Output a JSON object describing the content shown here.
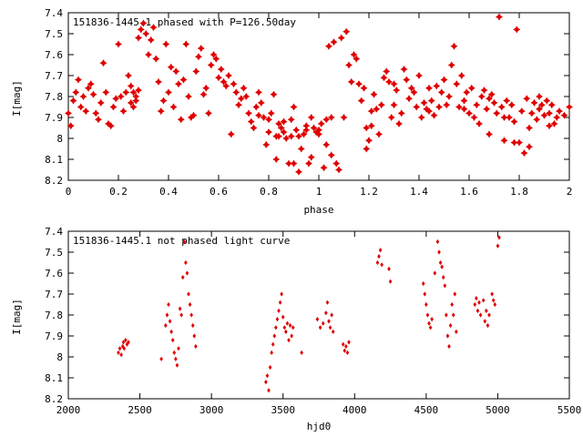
{
  "chart_data": [
    {
      "type": "scatter",
      "title": "151836-1445.1 phased with P=126.50day",
      "xlabel": "phase",
      "ylabel": "I[mag]",
      "xlim": [
        0,
        2
      ],
      "ylim": [
        8.2,
        7.4
      ],
      "y_inverted": true,
      "x_ticks": [
        "0",
        "0.2",
        "0.4",
        "0.6",
        "0.8",
        "1",
        "1.2",
        "1.4",
        "1.6",
        "1.8",
        "2"
      ],
      "y_ticks": [
        "7.4",
        "7.5",
        "7.6",
        "7.7",
        "7.8",
        "7.9",
        "8",
        "8.1",
        "8.2"
      ],
      "marker": "star",
      "color": "#e00000",
      "grid": false,
      "points": [
        [
          0.0,
          7.88
        ],
        [
          0.01,
          7.94
        ],
        [
          0.02,
          7.82
        ],
        [
          0.03,
          7.78
        ],
        [
          0.04,
          7.72
        ],
        [
          0.05,
          7.85
        ],
        [
          0.06,
          7.8
        ],
        [
          0.07,
          7.87
        ],
        [
          0.08,
          7.76
        ],
        [
          0.09,
          7.74
        ],
        [
          0.1,
          7.79
        ],
        [
          0.11,
          7.88
        ],
        [
          0.12,
          7.91
        ],
        [
          0.13,
          7.83
        ],
        [
          0.14,
          7.64
        ],
        [
          0.15,
          7.78
        ],
        [
          0.16,
          7.93
        ],
        [
          0.17,
          7.94
        ],
        [
          0.18,
          7.85
        ],
        [
          0.19,
          7.81
        ],
        [
          0.2,
          7.55
        ],
        [
          0.21,
          7.8
        ],
        [
          0.22,
          7.87
        ],
        [
          0.23,
          7.78
        ],
        [
          0.24,
          7.7
        ],
        [
          0.25,
          7.75
        ],
        [
          0.25,
          7.83
        ],
        [
          0.26,
          7.78
        ],
        [
          0.26,
          7.85
        ],
        [
          0.27,
          7.8
        ],
        [
          0.27,
          7.82
        ],
        [
          0.28,
          7.77
        ],
        [
          0.28,
          7.52
        ],
        [
          0.29,
          7.48
        ],
        [
          0.3,
          7.45
        ],
        [
          0.31,
          7.5
        ],
        [
          0.32,
          7.6
        ],
        [
          0.33,
          7.53
        ],
        [
          0.34,
          7.47
        ],
        [
          0.35,
          7.62
        ],
        [
          0.36,
          7.73
        ],
        [
          0.37,
          7.87
        ],
        [
          0.38,
          7.82
        ],
        [
          0.39,
          7.55
        ],
        [
          0.4,
          7.78
        ],
        [
          0.41,
          7.66
        ],
        [
          0.42,
          7.85
        ],
        [
          0.43,
          7.68
        ],
        [
          0.44,
          7.74
        ],
        [
          0.45,
          7.91
        ],
        [
          0.46,
          7.72
        ],
        [
          0.47,
          7.55
        ],
        [
          0.48,
          7.8
        ],
        [
          0.49,
          7.9
        ],
        [
          0.5,
          7.89
        ],
        [
          0.51,
          7.68
        ],
        [
          0.52,
          7.61
        ],
        [
          0.53,
          7.57
        ],
        [
          0.54,
          7.79
        ],
        [
          0.55,
          7.76
        ],
        [
          0.56,
          7.88
        ],
        [
          0.57,
          7.65
        ],
        [
          0.58,
          7.6
        ],
        [
          0.59,
          7.62
        ],
        [
          0.6,
          7.71
        ],
        [
          0.61,
          7.67
        ],
        [
          0.62,
          7.73
        ],
        [
          0.63,
          7.75
        ],
        [
          0.64,
          7.7
        ],
        [
          0.65,
          7.98
        ],
        [
          0.66,
          7.74
        ],
        [
          0.67,
          7.78
        ],
        [
          0.68,
          7.84
        ],
        [
          0.69,
          7.81
        ],
        [
          0.7,
          7.76
        ],
        [
          0.71,
          7.8
        ],
        [
          0.72,
          7.88
        ],
        [
          0.73,
          7.92
        ],
        [
          0.74,
          7.95
        ],
        [
          0.75,
          7.85
        ],
        [
          0.76,
          7.78
        ],
        [
          0.77,
          7.83
        ],
        [
          0.78,
          7.9
        ],
        [
          0.79,
          8.03
        ],
        [
          0.8,
          7.97
        ],
        [
          0.81,
          7.88
        ],
        [
          0.82,
          7.79
        ],
        [
          0.83,
          8.1
        ],
        [
          0.84,
          7.93
        ],
        [
          0.85,
          7.95
        ],
        [
          0.86,
          7.97
        ],
        [
          0.87,
          8.0
        ],
        [
          0.88,
          8.12
        ],
        [
          0.89,
          7.99
        ],
        [
          0.9,
          7.85
        ],
        [
          0.91,
          7.96
        ],
        [
          0.92,
          8.16
        ],
        [
          0.93,
          8.05
        ],
        [
          0.94,
          7.98
        ],
        [
          0.95,
          7.94
        ],
        [
          0.96,
          8.12
        ],
        [
          0.97,
          7.9
        ],
        [
          0.98,
          7.95
        ],
        [
          0.99,
          7.97
        ],
        [
          1.0,
          7.98
        ],
        [
          1.01,
          7.93
        ],
        [
          1.02,
          8.14
        ],
        [
          1.03,
          7.91
        ],
        [
          1.04,
          7.56
        ],
        [
          1.05,
          7.9
        ],
        [
          1.06,
          7.54
        ],
        [
          1.07,
          8.12
        ],
        [
          1.08,
          8.15
        ],
        [
          1.09,
          7.52
        ],
        [
          1.1,
          7.9
        ],
        [
          1.11,
          7.49
        ],
        [
          1.12,
          7.65
        ],
        [
          1.13,
          7.73
        ],
        [
          1.14,
          7.6
        ],
        [
          1.15,
          7.62
        ],
        [
          1.16,
          7.74
        ],
        [
          1.17,
          7.82
        ],
        [
          1.18,
          7.76
        ],
        [
          1.19,
          7.95
        ],
        [
          1.2,
          8.01
        ],
        [
          1.21,
          7.87
        ],
        [
          1.22,
          7.79
        ],
        [
          1.23,
          7.86
        ],
        [
          1.24,
          7.98
        ],
        [
          1.25,
          7.84
        ],
        [
          1.26,
          7.71
        ],
        [
          1.27,
          7.68
        ],
        [
          1.28,
          7.73
        ],
        [
          1.29,
          7.9
        ],
        [
          1.3,
          7.84
        ],
        [
          1.31,
          7.77
        ],
        [
          1.32,
          7.93
        ],
        [
          1.33,
          7.88
        ],
        [
          1.34,
          7.67
        ],
        [
          1.35,
          7.72
        ],
        [
          1.36,
          7.81
        ],
        [
          1.37,
          7.76
        ],
        [
          1.38,
          7.78
        ],
        [
          1.39,
          7.85
        ],
        [
          1.4,
          7.7
        ],
        [
          1.41,
          7.9
        ],
        [
          1.42,
          7.83
        ],
        [
          1.43,
          7.86
        ],
        [
          1.44,
          7.87
        ],
        [
          1.45,
          7.82
        ],
        [
          1.46,
          7.89
        ],
        [
          1.47,
          7.75
        ],
        [
          1.48,
          7.85
        ],
        [
          1.49,
          7.78
        ],
        [
          1.5,
          7.72
        ],
        [
          1.51,
          7.84
        ],
        [
          1.52,
          7.8
        ],
        [
          1.53,
          7.65
        ],
        [
          1.54,
          7.56
        ],
        [
          1.55,
          7.74
        ],
        [
          1.56,
          7.85
        ],
        [
          1.57,
          7.7
        ],
        [
          1.58,
          7.82
        ],
        [
          1.59,
          7.78
        ],
        [
          1.6,
          7.88
        ],
        [
          1.61,
          7.76
        ],
        [
          1.62,
          7.9
        ],
        [
          1.63,
          7.84
        ],
        [
          1.64,
          7.93
        ],
        [
          1.65,
          7.8
        ],
        [
          1.66,
          7.77
        ],
        [
          1.67,
          7.86
        ],
        [
          1.68,
          7.81
        ],
        [
          1.69,
          7.79
        ],
        [
          1.7,
          7.83
        ],
        [
          1.71,
          7.88
        ],
        [
          1.72,
          7.42
        ],
        [
          1.73,
          7.85
        ],
        [
          1.74,
          8.01
        ],
        [
          1.75,
          7.82
        ],
        [
          1.76,
          7.9
        ],
        [
          1.77,
          7.84
        ],
        [
          1.78,
          7.92
        ],
        [
          1.79,
          7.48
        ],
        [
          1.8,
          8.02
        ],
        [
          1.81,
          7.87
        ],
        [
          1.82,
          8.07
        ],
        [
          1.83,
          7.81
        ],
        [
          1.84,
          7.95
        ],
        [
          1.85,
          7.88
        ],
        [
          1.86,
          7.83
        ],
        [
          1.87,
          7.91
        ],
        [
          1.88,
          7.86
        ],
        [
          1.89,
          7.84
        ],
        [
          1.9,
          7.89
        ],
        [
          1.91,
          7.82
        ],
        [
          1.92,
          7.88
        ],
        [
          1.93,
          7.84
        ],
        [
          1.94,
          7.93
        ],
        [
          1.95,
          7.9
        ],
        [
          1.96,
          7.87
        ],
        [
          1.98,
          7.89
        ],
        [
          2.0,
          7.85
        ],
        [
          0.83,
          7.99
        ],
        [
          0.86,
          7.92
        ],
        [
          0.89,
          7.91
        ],
        [
          0.95,
          7.96
        ],
        [
          1.0,
          7.96
        ],
        [
          1.03,
          8.03
        ],
        [
          1.05,
          8.08
        ],
        [
          0.9,
          8.12
        ],
        [
          0.92,
          7.99
        ],
        [
          0.97,
          8.09
        ],
        [
          0.8,
          7.91
        ],
        [
          0.76,
          7.89
        ],
        [
          0.84,
          7.99
        ],
        [
          1.19,
          8.05
        ],
        [
          1.21,
          7.94
        ],
        [
          1.3,
          7.74
        ],
        [
          1.44,
          7.76
        ],
        [
          1.58,
          7.86
        ],
        [
          1.68,
          7.98
        ],
        [
          1.74,
          7.9
        ],
        [
          1.78,
          8.02
        ],
        [
          1.84,
          8.04
        ],
        [
          1.88,
          7.8
        ],
        [
          1.92,
          7.94
        ]
      ]
    },
    {
      "type": "scatter",
      "title": "151836-1445.1 not phased light curve",
      "xlabel": "hjd0",
      "ylabel": "I[mag]",
      "xlim": [
        2000,
        5500
      ],
      "ylim": [
        8.2,
        7.4
      ],
      "y_inverted": true,
      "x_ticks": [
        "2000",
        "2500",
        "3000",
        "3500",
        "4000",
        "4500",
        "5000",
        "5500"
      ],
      "y_ticks": [
        "7.4",
        "7.5",
        "7.6",
        "7.7",
        "7.8",
        "7.9",
        "8",
        "8.1",
        "8.2"
      ],
      "marker": "diamond",
      "color": "#e00000",
      "grid": false,
      "points": [
        [
          2350,
          7.98
        ],
        [
          2360,
          7.96
        ],
        [
          2370,
          7.99
        ],
        [
          2380,
          7.95
        ],
        [
          2385,
          7.93
        ],
        [
          2390,
          7.96
        ],
        [
          2400,
          7.92
        ],
        [
          2410,
          7.94
        ],
        [
          2420,
          7.93
        ],
        [
          2650,
          8.01
        ],
        [
          2680,
          7.85
        ],
        [
          2690,
          7.8
        ],
        [
          2700,
          7.75
        ],
        [
          2710,
          7.83
        ],
        [
          2720,
          7.88
        ],
        [
          2730,
          7.92
        ],
        [
          2740,
          7.98
        ],
        [
          2750,
          8.01
        ],
        [
          2760,
          8.04
        ],
        [
          2770,
          7.96
        ],
        [
          2780,
          7.77
        ],
        [
          2790,
          7.8
        ],
        [
          2800,
          7.62
        ],
        [
          2810,
          7.45
        ],
        [
          2820,
          7.55
        ],
        [
          2830,
          7.6
        ],
        [
          2840,
          7.7
        ],
        [
          2850,
          7.75
        ],
        [
          2860,
          7.8
        ],
        [
          2870,
          7.85
        ],
        [
          2880,
          7.9
        ],
        [
          2890,
          7.95
        ],
        [
          3380,
          8.12
        ],
        [
          3390,
          8.09
        ],
        [
          3400,
          8.16
        ],
        [
          3410,
          8.05
        ],
        [
          3420,
          7.98
        ],
        [
          3430,
          7.94
        ],
        [
          3440,
          7.9
        ],
        [
          3450,
          7.86
        ],
        [
          3460,
          7.82
        ],
        [
          3470,
          7.78
        ],
        [
          3480,
          7.74
        ],
        [
          3490,
          7.7
        ],
        [
          3500,
          7.81
        ],
        [
          3510,
          7.86
        ],
        [
          3520,
          7.88
        ],
        [
          3530,
          7.84
        ],
        [
          3540,
          7.92
        ],
        [
          3550,
          7.85
        ],
        [
          3560,
          7.9
        ],
        [
          3570,
          7.86
        ],
        [
          3630,
          7.98
        ],
        [
          3740,
          7.82
        ],
        [
          3760,
          7.86
        ],
        [
          3780,
          7.84
        ],
        [
          3800,
          7.79
        ],
        [
          3810,
          7.74
        ],
        [
          3820,
          7.83
        ],
        [
          3830,
          7.86
        ],
        [
          3840,
          7.8
        ],
        [
          3850,
          7.88
        ],
        [
          3920,
          7.94
        ],
        [
          3930,
          7.97
        ],
        [
          3940,
          7.95
        ],
        [
          3950,
          7.98
        ],
        [
          3960,
          7.93
        ],
        [
          4160,
          7.55
        ],
        [
          4170,
          7.52
        ],
        [
          4180,
          7.49
        ],
        [
          4190,
          7.56
        ],
        [
          4240,
          7.58
        ],
        [
          4250,
          7.64
        ],
        [
          4480,
          7.65
        ],
        [
          4490,
          7.7
        ],
        [
          4500,
          7.75
        ],
        [
          4510,
          7.8
        ],
        [
          4520,
          7.84
        ],
        [
          4530,
          7.86
        ],
        [
          4540,
          7.82
        ],
        [
          4560,
          7.6
        ],
        [
          4580,
          7.45
        ],
        [
          4590,
          7.5
        ],
        [
          4600,
          7.55
        ],
        [
          4610,
          7.57
        ],
        [
          4620,
          7.62
        ],
        [
          4630,
          7.66
        ],
        [
          4640,
          7.8
        ],
        [
          4650,
          7.9
        ],
        [
          4660,
          7.95
        ],
        [
          4670,
          7.85
        ],
        [
          4680,
          7.75
        ],
        [
          4690,
          7.8
        ],
        [
          4700,
          7.7
        ],
        [
          4710,
          7.88
        ],
        [
          4840,
          7.75
        ],
        [
          4850,
          7.72
        ],
        [
          4860,
          7.78
        ],
        [
          4870,
          7.74
        ],
        [
          4880,
          7.8
        ],
        [
          4900,
          7.73
        ],
        [
          4910,
          7.83
        ],
        [
          4920,
          7.78
        ],
        [
          4930,
          7.85
        ],
        [
          4940,
          7.8
        ],
        [
          4960,
          7.7
        ],
        [
          4970,
          7.73
        ],
        [
          4980,
          7.75
        ],
        [
          5000,
          7.47
        ],
        [
          5010,
          7.43
        ]
      ]
    }
  ]
}
